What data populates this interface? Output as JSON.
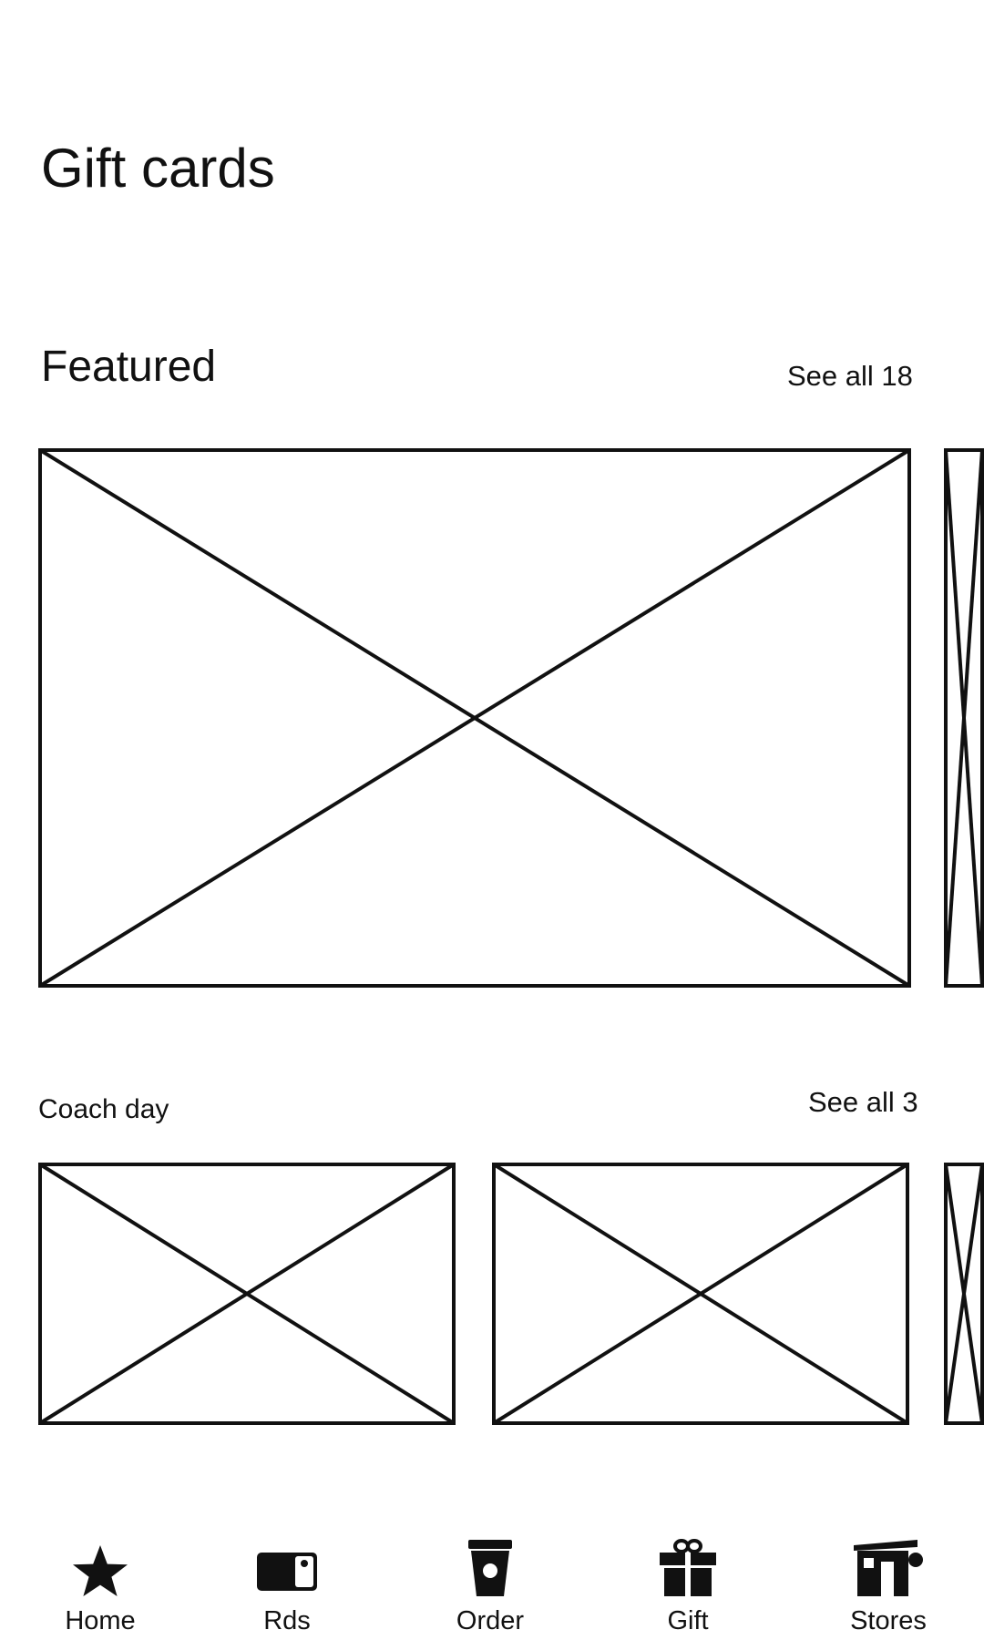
{
  "header": {
    "title": "Gift cards"
  },
  "featured": {
    "title": "Featured",
    "see_all_label": "See all 18"
  },
  "coach_day": {
    "title": "Coach day",
    "see_all_label": "See all 3"
  },
  "nav": {
    "items": [
      {
        "label": "Home",
        "icon": "star-icon"
      },
      {
        "label": "Rds",
        "icon": "card-icon"
      },
      {
        "label": "Order",
        "icon": "cup-icon"
      },
      {
        "label": "Gift",
        "icon": "gift-icon"
      },
      {
        "label": "Stores",
        "icon": "store-icon"
      }
    ]
  },
  "colors": {
    "background": "#ffffff",
    "foreground": "#111111"
  }
}
